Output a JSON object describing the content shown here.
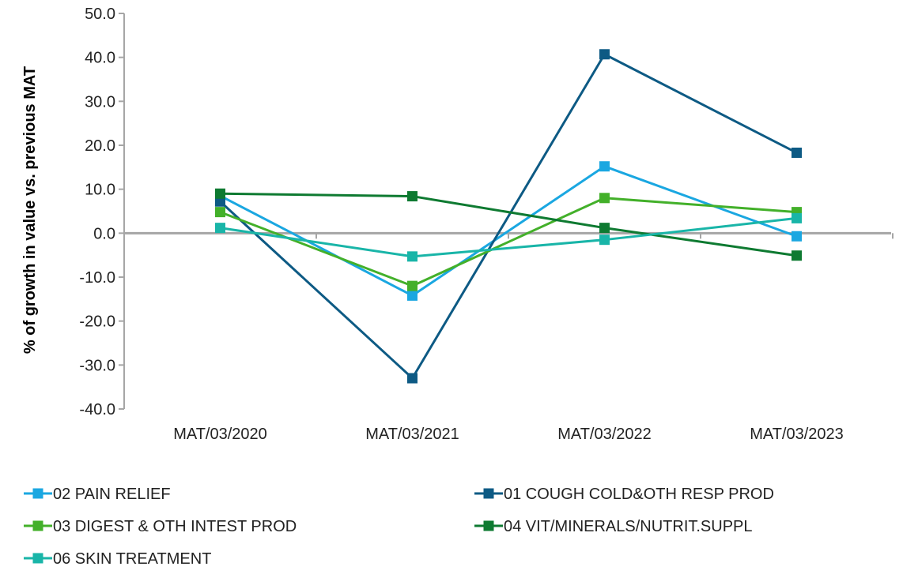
{
  "chart_data": {
    "type": "line",
    "title": "",
    "xlabel": "",
    "ylabel": "% of growth in value vs. previous MAT",
    "categories": [
      "MAT/03/2020",
      "MAT/03/2021",
      "MAT/03/2022",
      "MAT/03/2023"
    ],
    "ylim": [
      -40.0,
      50.0
    ],
    "yticks": [
      "50.0",
      "40.0",
      "30.0",
      "20.0",
      "10.0",
      "0.0",
      "-10.0",
      "-20.0",
      "-30.0",
      "-40.0"
    ],
    "grid": false,
    "legend_position": "bottom",
    "marker": "square",
    "series": [
      {
        "name": "02 PAIN RELIEF",
        "color": "#1aa7e1",
        "values": [
          8.5,
          -14.2,
          15.2,
          -0.7
        ]
      },
      {
        "name": "01 COUGH COLD&OTH RESP PROD",
        "color": "#0d5a84",
        "values": [
          7.2,
          -33.0,
          40.7,
          18.3
        ]
      },
      {
        "name": "03 DIGEST & OTH INTEST PROD",
        "color": "#43b02a",
        "values": [
          4.8,
          -12.0,
          8.0,
          4.8
        ]
      },
      {
        "name": "04 VIT/MINERALS/NUTRIT.SUPPL",
        "color": "#0e7a31",
        "values": [
          9.0,
          8.4,
          1.2,
          -5.1
        ]
      },
      {
        "name": "06 SKIN TREATMENT",
        "color": "#19b5a8",
        "values": [
          1.2,
          -5.3,
          -1.5,
          3.4
        ]
      }
    ]
  }
}
